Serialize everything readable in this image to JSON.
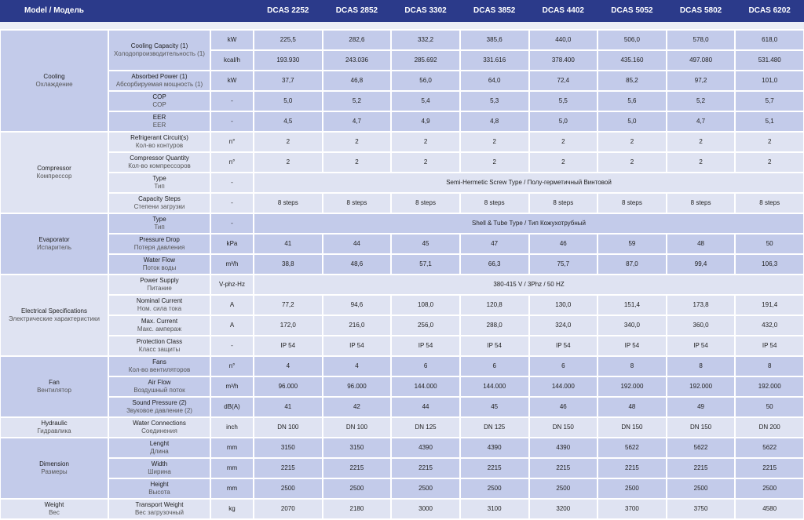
{
  "header": {
    "label": "Model / Модель",
    "models": [
      "DCAS 2252",
      "DCAS 2852",
      "DCAS 3302",
      "DCAS 3852",
      "DCAS 4402",
      "DCAS 5052",
      "DCAS 5802",
      "DCAS 6202"
    ]
  },
  "groups": [
    {
      "name": "Cooling",
      "name_ru": "Охлаждение",
      "rows": [
        {
          "param": "Cooling Capacity (1)",
          "param_ru": "Холодопроизводительность (1)",
          "unit": "kW",
          "values": [
            "225,5",
            "282,6",
            "332,2",
            "385,6",
            "440,0",
            "506,0",
            "578,0",
            "618,0"
          ]
        },
        {
          "unit": "kcal/h",
          "values": [
            "193.930",
            "243.036",
            "285.692",
            "331.616",
            "378.400",
            "435.160",
            "497.080",
            "531.480"
          ]
        },
        {
          "param": "Absorbed Power (1)",
          "param_ru": "Абсорбируемая мощность (1)",
          "unit": "kW",
          "values": [
            "37,7",
            "46,8",
            "56,0",
            "64,0",
            "72,4",
            "85,2",
            "97,2",
            "101,0"
          ]
        },
        {
          "param": "COP",
          "param_ru": "COP",
          "unit": "-",
          "values": [
            "5,0",
            "5,2",
            "5,4",
            "5,3",
            "5,5",
            "5,6",
            "5,2",
            "5,7"
          ]
        },
        {
          "param": "EER",
          "param_ru": "EER",
          "unit": "-",
          "values": [
            "4,5",
            "4,7",
            "4,9",
            "4,8",
            "5,0",
            "5,0",
            "4,7",
            "5,1"
          ]
        }
      ]
    },
    {
      "name": "Compressor",
      "name_ru": "Компрессор",
      "rows": [
        {
          "param": "Refrigerant Circuit(s)",
          "param_ru": "Кол-во контуров",
          "unit": "n°",
          "values": [
            "2",
            "2",
            "2",
            "2",
            "2",
            "2",
            "2",
            "2"
          ]
        },
        {
          "param": "Compressor Quantity",
          "param_ru": "Кол-во компрессоров",
          "unit": "n°",
          "values": [
            "2",
            "2",
            "2",
            "2",
            "2",
            "2",
            "2",
            "2"
          ]
        },
        {
          "param": "Type",
          "param_ru": "Тип",
          "unit": "-",
          "value": "Semi-Hermetic Screw Type / Полу-герметичный Винтовой"
        },
        {
          "param": "Capacity Steps",
          "param_ru": "Степени загрузки",
          "unit": "-",
          "values": [
            "8 steps",
            "8 steps",
            "8 steps",
            "8 steps",
            "8 steps",
            "8 steps",
            "8 steps",
            "8 steps"
          ]
        }
      ]
    },
    {
      "name": "Evaporator",
      "name_ru": "Испаритель",
      "rows": [
        {
          "param": "Type",
          "param_ru": "Тип",
          "unit": "-",
          "value": "Shell & Tube Type / Тип Кожухотрубный"
        },
        {
          "param": "Pressure Drop",
          "param_ru": "Потеря давления",
          "unit": "kPa",
          "values": [
            "41",
            "44",
            "45",
            "47",
            "46",
            "59",
            "48",
            "50"
          ]
        },
        {
          "param": "Water Flow",
          "param_ru": "Поток воды",
          "unit": "m³/h",
          "values": [
            "38,8",
            "48,6",
            "57,1",
            "66,3",
            "75,7",
            "87,0",
            "99,4",
            "106,3"
          ]
        }
      ]
    },
    {
      "name": "Electrical Specifications",
      "name_ru": "Электрические характеристики",
      "rows": [
        {
          "param": "Power Supply",
          "param_ru": "Питание",
          "unit": "V-phz-Hz",
          "value": "380-415 V / 3Phz / 50 HZ"
        },
        {
          "param": "Nominal Current",
          "param_ru": "Ном. сила тока",
          "unit": "A",
          "values": [
            "77,2",
            "94,6",
            "108,0",
            "120,8",
            "130,0",
            "151,4",
            "173,8",
            "191,4"
          ]
        },
        {
          "param": "Max. Current",
          "param_ru": "Макс. ампераж",
          "unit": "A",
          "values": [
            "172,0",
            "216,0",
            "256,0",
            "288,0",
            "324,0",
            "340,0",
            "360,0",
            "432,0"
          ]
        },
        {
          "param": "Protection Class",
          "param_ru": "Класс защиты",
          "unit": "-",
          "values": [
            "IP 54",
            "IP 54",
            "IP 54",
            "IP 54",
            "IP 54",
            "IP 54",
            "IP 54",
            "IP 54"
          ]
        }
      ]
    },
    {
      "name": "Fan",
      "name_ru": "Вентилятор",
      "rows": [
        {
          "param": "Fans",
          "param_ru": "Кол-во вентиляторов",
          "unit": "n°",
          "values": [
            "4",
            "4",
            "6",
            "6",
            "6",
            "8",
            "8",
            "8"
          ]
        },
        {
          "param": "Air Flow",
          "param_ru": "Воздушный поток",
          "unit": "m³/h",
          "values": [
            "96.000",
            "96.000",
            "144.000",
            "144.000",
            "144.000",
            "192.000",
            "192.000",
            "192.000"
          ]
        },
        {
          "param": "Sound Pressure (2)",
          "param_ru": "Звуковое давление (2)",
          "unit": "dB(A)",
          "values": [
            "41",
            "42",
            "44",
            "45",
            "46",
            "48",
            "49",
            "50"
          ]
        }
      ]
    },
    {
      "name": "Hydraulic",
      "name_ru": "Гидравлика",
      "rows": [
        {
          "param": "Water Connections",
          "param_ru": "Соединения",
          "unit": "inch",
          "values": [
            "DN 100",
            "DN 100",
            "DN 125",
            "DN 125",
            "DN 150",
            "DN 150",
            "DN 150",
            "DN 200"
          ]
        }
      ]
    },
    {
      "name": "Dimension",
      "name_ru": "Размеры",
      "rows": [
        {
          "param": "Lenght",
          "param_ru": "Длина",
          "unit": "mm",
          "values": [
            "3150",
            "3150",
            "4390",
            "4390",
            "4390",
            "5622",
            "5622",
            "5622"
          ]
        },
        {
          "param": "Width",
          "param_ru": "Ширина",
          "unit": "mm",
          "values": [
            "2215",
            "2215",
            "2215",
            "2215",
            "2215",
            "2215",
            "2215",
            "2215"
          ]
        },
        {
          "param": "Height",
          "param_ru": "Высота",
          "unit": "mm",
          "values": [
            "2500",
            "2500",
            "2500",
            "2500",
            "2500",
            "2500",
            "2500",
            "2500"
          ]
        }
      ]
    },
    {
      "name": "Weight",
      "name_ru": "Вес",
      "rows": [
        {
          "param": "Transport Weight",
          "param_ru": "Вес загрузочный",
          "unit": "kg",
          "values": [
            "2070",
            "2180",
            "3000",
            "3100",
            "3200",
            "3700",
            "3750",
            "4580"
          ]
        }
      ]
    }
  ]
}
